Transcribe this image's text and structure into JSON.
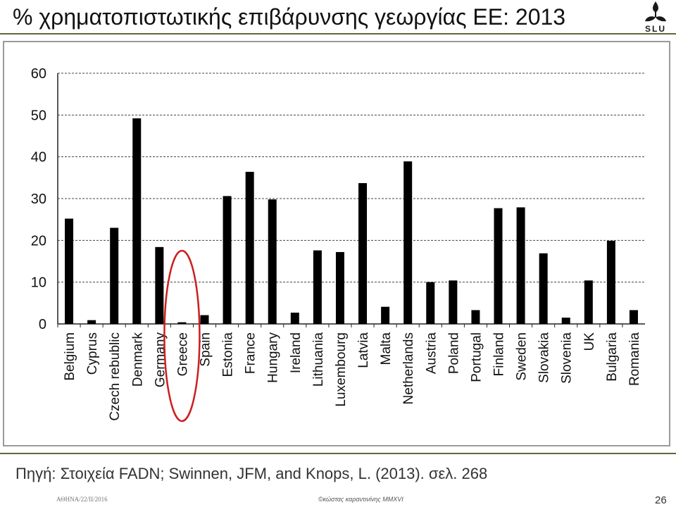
{
  "slide": {
    "title": "% χρηματοπιστωτικής επιβάρυνσης γεωργίας ΕΕ: 2013",
    "logo_text": "SLU",
    "source": "Πηγή: Στοιχεία FADN; Swinnen, JFM, and Knops, L. (2013). σελ. 268",
    "footer_left": "ΑΘΗΝΑ/22/ΙΙ/2016",
    "footer_center": "©κώστας καραντινίνης MMXVI",
    "page_number": "26"
  },
  "chart_data": {
    "type": "bar",
    "title": "",
    "xlabel": "",
    "ylabel": "",
    "ylim": [
      0,
      60
    ],
    "yticks": [
      0,
      10,
      20,
      30,
      40,
      50,
      60
    ],
    "grid": true,
    "bar_color": "#000000",
    "highlight": {
      "category": "Greece",
      "shape": "ellipse",
      "color": "#cc1f1f"
    },
    "categories": [
      "Belgium",
      "Cyprus",
      "Czech rebublic",
      "Denmark",
      "Germany",
      "Greece",
      "Spain",
      "Estonia",
      "France",
      "Hungary",
      "Ireland",
      "Lithuania",
      "Luxembourg",
      "Latvia",
      "Malta",
      "Netherlands",
      "Austria",
      "Poland",
      "Portugal",
      "Finland",
      "Sweden",
      "Slovakia",
      "Slovenia",
      "UK",
      "Bulgaria",
      "Romania"
    ],
    "values": [
      25.2,
      0.9,
      23.0,
      49.2,
      18.4,
      0.4,
      2.1,
      30.6,
      36.4,
      29.8,
      2.7,
      17.6,
      17.2,
      33.7,
      4.1,
      38.9,
      10.0,
      10.4,
      3.3,
      27.7,
      27.9,
      16.9,
      1.5,
      10.4,
      19.9,
      3.3
    ]
  }
}
